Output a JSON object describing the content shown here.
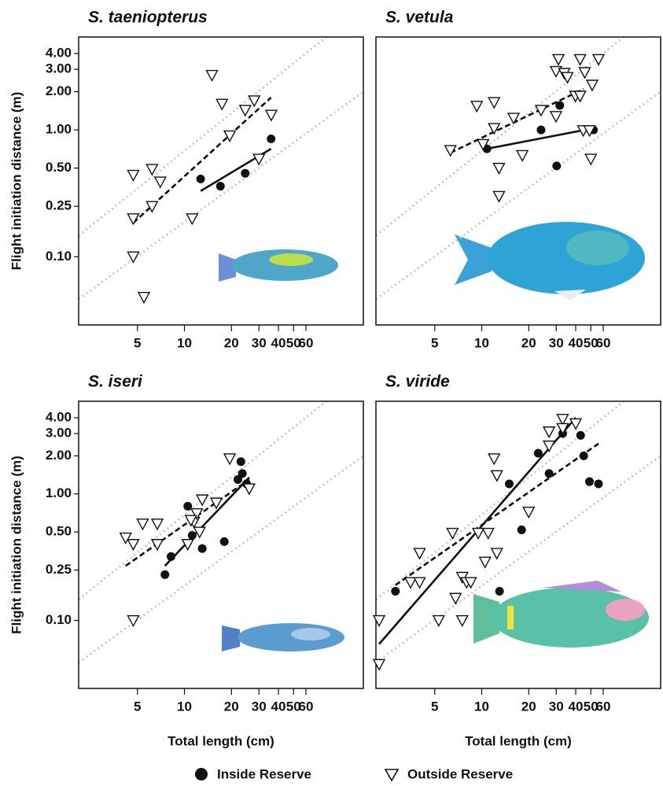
{
  "chart_data": [
    {
      "type": "scatter",
      "title": "S. taeniopterus",
      "y_label": "Flight initiation distance (m)",
      "log_x": true,
      "log_y": true,
      "xlim": [
        2.1,
        140
      ],
      "ylim": [
        0.029,
        5.4
      ],
      "xticks": [
        5,
        10,
        20,
        30,
        40,
        50,
        60
      ],
      "yticks": [
        {
          "value": 0.1,
          "label": "0.10"
        },
        {
          "value": 0.25,
          "label": "0.25"
        },
        {
          "value": 0.5,
          "label": "0.50"
        },
        {
          "value": 1,
          "label": "1.00"
        },
        {
          "value": 2,
          "label": "2.00"
        },
        {
          "value": 3,
          "label": "3.00"
        },
        {
          "value": 4,
          "label": "4.00"
        }
      ],
      "series": [
        {
          "name": "Inside Reserve",
          "marker": "circle",
          "color": "#111111",
          "x": [
            12.7,
            17,
            24.5,
            35.9
          ],
          "y": [
            0.41,
            0.36,
            0.455,
            0.85
          ],
          "fit": {
            "dash": false,
            "x": [
              12.7,
              35.9
            ],
            "y": [
              0.33,
              0.71
            ]
          }
        },
        {
          "name": "Outside Reserve",
          "marker": "triangle",
          "color": "#111111",
          "x": [
            4.7,
            6.2,
            7.0,
            6.2,
            4.7,
            11.2,
            4.7,
            5.5,
            15,
            17.4,
            19.5,
            24.5,
            28,
            30,
            36
          ],
          "y": [
            0.44,
            0.49,
            0.39,
            0.25,
            0.2,
            0.2,
            0.1,
            0.048,
            2.7,
            1.6,
            0.9,
            1.43,
            1.7,
            0.59,
            1.31
          ],
          "fit": {
            "dash": true,
            "x": [
              4.7,
              35.9
            ],
            "y": [
              0.185,
              1.8
            ]
          }
        }
      ]
    },
    {
      "type": "scatter",
      "title": "S. vetula",
      "log_x": true,
      "log_y": true,
      "xlim": [
        2.1,
        140
      ],
      "ylim": [
        0.029,
        5.4
      ],
      "xticks": [
        5,
        10,
        20,
        30,
        40,
        50,
        60
      ],
      "series": [
        {
          "name": "Inside Reserve",
          "marker": "circle",
          "color": "#111111",
          "x": [
            10.8,
            24,
            31.6,
            30.2,
            52
          ],
          "y": [
            0.71,
            1.0,
            1.56,
            0.52,
            1.0
          ],
          "fit": {
            "dash": false,
            "x": [
              10.8,
              52
            ],
            "y": [
              0.71,
              1.03
            ]
          }
        },
        {
          "name": "Outside Reserve",
          "marker": "triangle",
          "color": "#111111",
          "x": [
            6.3,
            9.3,
            12,
            12,
            12.9,
            12.9,
            10.2,
            16,
            18.2,
            24,
            29.9,
            31,
            29.9,
            33.8,
            35.4,
            39.8,
            42.7,
            45.7,
            51,
            56,
            44.7,
            49,
            50,
            42.7
          ],
          "y": [
            0.69,
            1.54,
            1.65,
            1.03,
            0.5,
            0.3,
            0.77,
            1.24,
            0.63,
            1.43,
            1.28,
            3.6,
            2.9,
            2.8,
            2.6,
            1.85,
            3.6,
            2.84,
            2.26,
            3.6,
            0.99,
            0.99,
            0.59,
            1.85
          ],
          "fit": {
            "dash": true,
            "x": [
              6.3,
              45
            ],
            "y": [
              0.66,
              2.1
            ]
          }
        }
      ]
    },
    {
      "type": "scatter",
      "title": "S. iseri",
      "y_label": "Flight initiation distance (m)",
      "x_label": "Total length (cm)",
      "log_x": true,
      "log_y": true,
      "xlim": [
        2.1,
        140
      ],
      "ylim": [
        0.029,
        5.4
      ],
      "xticks": [
        5,
        10,
        20,
        30,
        40,
        50,
        60
      ],
      "yticks": [
        {
          "value": 0.1,
          "label": "0.10"
        },
        {
          "value": 0.25,
          "label": "0.25"
        },
        {
          "value": 0.5,
          "label": "0.50"
        },
        {
          "value": 1,
          "label": "1.00"
        },
        {
          "value": 2,
          "label": "2.00"
        },
        {
          "value": 3,
          "label": "3.00"
        },
        {
          "value": 4,
          "label": "4.00"
        }
      ],
      "series": [
        {
          "name": "Inside Reserve",
          "marker": "circle",
          "color": "#111111",
          "x": [
            7.5,
            8.2,
            10.5,
            11.2,
            13,
            18,
            22,
            23,
            23.5,
            25
          ],
          "y": [
            0.23,
            0.32,
            0.8,
            0.47,
            0.37,
            0.42,
            1.3,
            1.8,
            1.45,
            1.2
          ],
          "fit": {
            "dash": false,
            "x": [
              7.5,
              26
            ],
            "y": [
              0.27,
              1.35
            ]
          }
        },
        {
          "name": "Outside Reserve",
          "marker": "triangle",
          "color": "#111111",
          "x": [
            4.2,
            4.7,
            5.4,
            6.7,
            6.7,
            4.7,
            10.5,
            11.5,
            12,
            13,
            12.5,
            11,
            16,
            19.5,
            26
          ],
          "y": [
            0.45,
            0.4,
            0.58,
            0.58,
            0.4,
            0.1,
            0.4,
            0.6,
            0.7,
            0.9,
            0.5,
            0.62,
            0.85,
            1.9,
            1.1
          ],
          "fit": {
            "dash": true,
            "x": [
              4.2,
              26
            ],
            "y": [
              0.27,
              1.3
            ]
          }
        }
      ]
    },
    {
      "type": "scatter",
      "title": "S. viride",
      "x_label": "Total length (cm)",
      "log_x": true,
      "log_y": true,
      "xlim": [
        2.1,
        140
      ],
      "ylim": [
        0.029,
        5.4
      ],
      "xticks": [
        5,
        10,
        20,
        30,
        40,
        50,
        60
      ],
      "series": [
        {
          "name": "Inside Reserve",
          "marker": "circle",
          "color": "#111111",
          "x": [
            2.8,
            13,
            15,
            18,
            23,
            27,
            33,
            43,
            45,
            49,
            56
          ],
          "y": [
            0.17,
            0.17,
            1.2,
            0.52,
            2.1,
            1.45,
            3.0,
            2.9,
            2.0,
            1.25,
            1.2
          ],
          "fit": {
            "dash": false,
            "x": [
              2.2,
              40
            ],
            "y": [
              0.065,
              4.0
            ]
          }
        },
        {
          "name": "Outside Reserve",
          "marker": "triangle",
          "color": "#111111",
          "x": [
            2.2,
            2.2,
            3.5,
            4.0,
            4.0,
            5.3,
            6.5,
            6.8,
            7.5,
            7.5,
            8,
            8.5,
            9.5,
            10.5,
            11,
            12,
            12.5,
            12.5,
            20,
            27,
            27,
            33,
            33,
            40
          ],
          "y": [
            0.1,
            0.045,
            0.2,
            0.2,
            0.34,
            0.1,
            0.49,
            0.15,
            0.1,
            0.22,
            0.2,
            0.2,
            0.49,
            0.29,
            0.49,
            1.9,
            1.4,
            0.34,
            0.72,
            3.1,
            2.4,
            3.9,
            3.3,
            3.6
          ],
          "fit": {
            "dash": true,
            "x": [
              2.8,
              56
            ],
            "y": [
              0.19,
              2.5
            ]
          }
        }
      ]
    }
  ]
}
